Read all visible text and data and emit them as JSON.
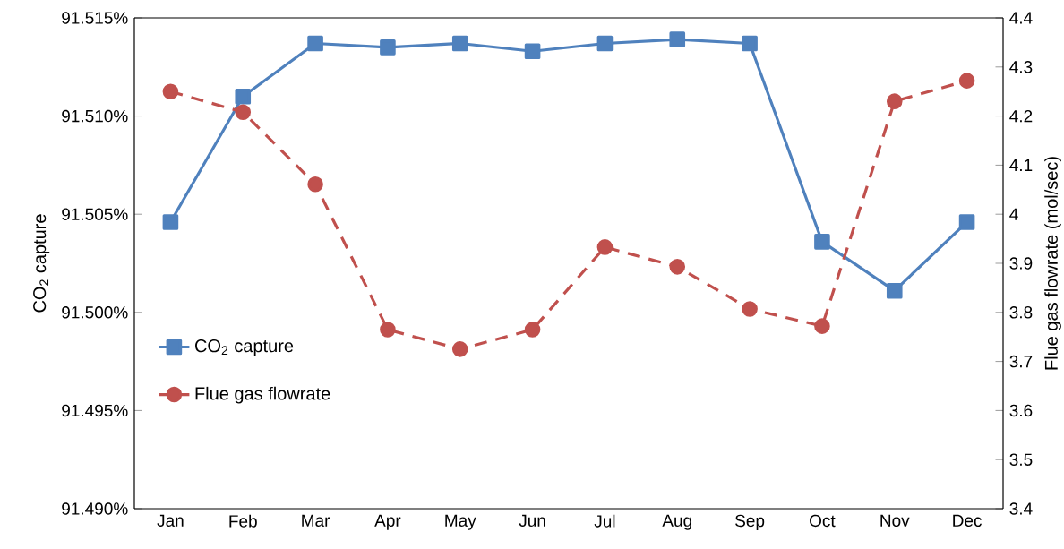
{
  "chart_data": {
    "type": "line",
    "categories": [
      "Jan",
      "Feb",
      "Mar",
      "Apr",
      "May",
      "Jun",
      "Jul",
      "Aug",
      "Sep",
      "Oct",
      "Nov",
      "Dec"
    ],
    "series": [
      {
        "name": "CO$_{2}$ capture",
        "color": "#4f81bd",
        "marker": "square",
        "line_style": "solid",
        "values": [
          91.5046,
          91.511,
          91.5137,
          91.5135,
          91.5137,
          91.5133,
          91.5137,
          91.5139,
          91.5137,
          91.5036,
          91.5011,
          91.5046
        ]
      },
      {
        "name": "Flue gas flowrate",
        "color": "#c0504d",
        "marker": "circle",
        "line_style": "dashed",
        "axis": "y2",
        "values": [
          4.25,
          4.208,
          4.061,
          3.765,
          3.725,
          3.765,
          3.933,
          3.893,
          3.807,
          3.772,
          4.23,
          4.272
        ]
      }
    ],
    "ylabel": "CO$_{2}$ capture",
    "y2label": "Flue gas flowrate (mol/sec)",
    "ylim": [
      91.49,
      91.515
    ],
    "yticks": [
      {
        "value": 91.49,
        "label": "91.490%"
      },
      {
        "value": 91.495,
        "label": "91.495%"
      },
      {
        "value": 91.5,
        "label": "91.500%"
      },
      {
        "value": 91.505,
        "label": "91.505%"
      },
      {
        "value": 91.51,
        "label": "91.510%"
      },
      {
        "value": 91.515,
        "label": "91.515%"
      }
    ],
    "y2lim": [
      3.4,
      4.4
    ],
    "y2ticks": [
      3.4,
      3.5,
      3.6,
      3.7,
      3.8,
      3.9,
      4,
      4.1,
      4.2,
      4.3,
      4.4
    ],
    "grid": false,
    "legend": "left"
  }
}
